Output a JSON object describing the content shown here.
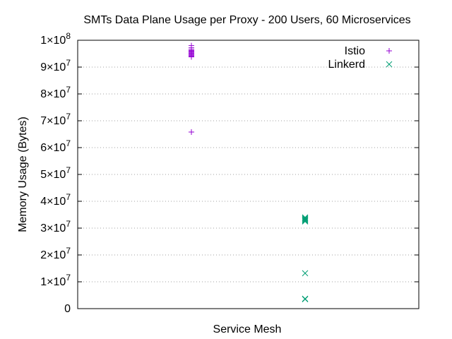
{
  "chart_data": {
    "type": "scatter",
    "title": "SMTs Data Plane Usage per Proxy - 200 Users, 60 Microservices",
    "xlabel": "Service Mesh",
    "ylabel": "Memory Usage (Bytes)",
    "ylim": [
      0,
      100000000
    ],
    "xlim": [
      0,
      3
    ],
    "grid": "horizontal",
    "legend_position": "top-right",
    "y_ticks": [
      {
        "value": 0,
        "label": "0"
      },
      {
        "value": 10000000,
        "label": "1×10",
        "exp": "7"
      },
      {
        "value": 20000000,
        "label": "2×10",
        "exp": "7"
      },
      {
        "value": 30000000,
        "label": "3×10",
        "exp": "7"
      },
      {
        "value": 40000000,
        "label": "4×10",
        "exp": "7"
      },
      {
        "value": 50000000,
        "label": "5×10",
        "exp": "7"
      },
      {
        "value": 60000000,
        "label": "6×10",
        "exp": "7"
      },
      {
        "value": 70000000,
        "label": "7×10",
        "exp": "7"
      },
      {
        "value": 80000000,
        "label": "8×10",
        "exp": "7"
      },
      {
        "value": 90000000,
        "label": "9×10",
        "exp": "7"
      },
      {
        "value": 100000000,
        "label": "1×10",
        "exp": "8"
      }
    ],
    "series": [
      {
        "name": "Istio",
        "marker": "plus",
        "color": "#9400d3",
        "points": [
          {
            "x": 1,
            "y": 98000000
          },
          {
            "x": 1,
            "y": 97200000
          },
          {
            "x": 1,
            "y": 96600000
          },
          {
            "x": 1,
            "y": 96200000
          },
          {
            "x": 1,
            "y": 95900000
          },
          {
            "x": 1,
            "y": 95600000
          },
          {
            "x": 1,
            "y": 95300000
          },
          {
            "x": 1,
            "y": 95000000
          },
          {
            "x": 1,
            "y": 94700000
          },
          {
            "x": 1,
            "y": 94400000
          },
          {
            "x": 1,
            "y": 94100000
          },
          {
            "x": 1,
            "y": 93800000
          },
          {
            "x": 1,
            "y": 65800000
          }
        ]
      },
      {
        "name": "Linkerd",
        "marker": "cross",
        "color": "#009e73",
        "points": [
          {
            "x": 2,
            "y": 34000000
          },
          {
            "x": 2,
            "y": 33700000
          },
          {
            "x": 2,
            "y": 33400000
          },
          {
            "x": 2,
            "y": 33100000
          },
          {
            "x": 2,
            "y": 32800000
          },
          {
            "x": 2,
            "y": 32500000
          },
          {
            "x": 2,
            "y": 13200000
          },
          {
            "x": 2,
            "y": 3700000
          },
          {
            "x": 2,
            "y": 3500000
          }
        ]
      }
    ]
  }
}
